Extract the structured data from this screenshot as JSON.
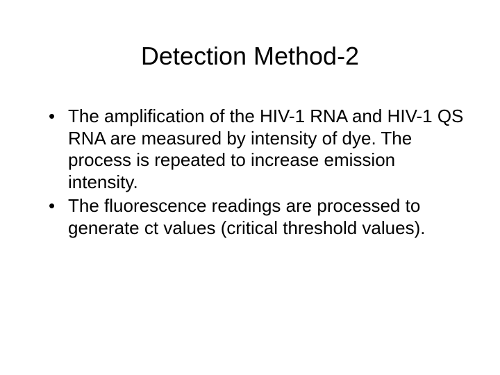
{
  "slide": {
    "title": "Detection Method-2",
    "bullets": [
      "The amplification of the HIV-1 RNA and HIV-1 QS RNA are measured by intensity of dye. The process is repeated to increase emission intensity.",
      "The fluorescence readings are processed to generate ct values (critical threshold values)."
    ],
    "background_color": "#ffffff",
    "text_color": "#000000",
    "title_fontsize": 36,
    "body_fontsize": 26,
    "font_family": "Arial"
  }
}
